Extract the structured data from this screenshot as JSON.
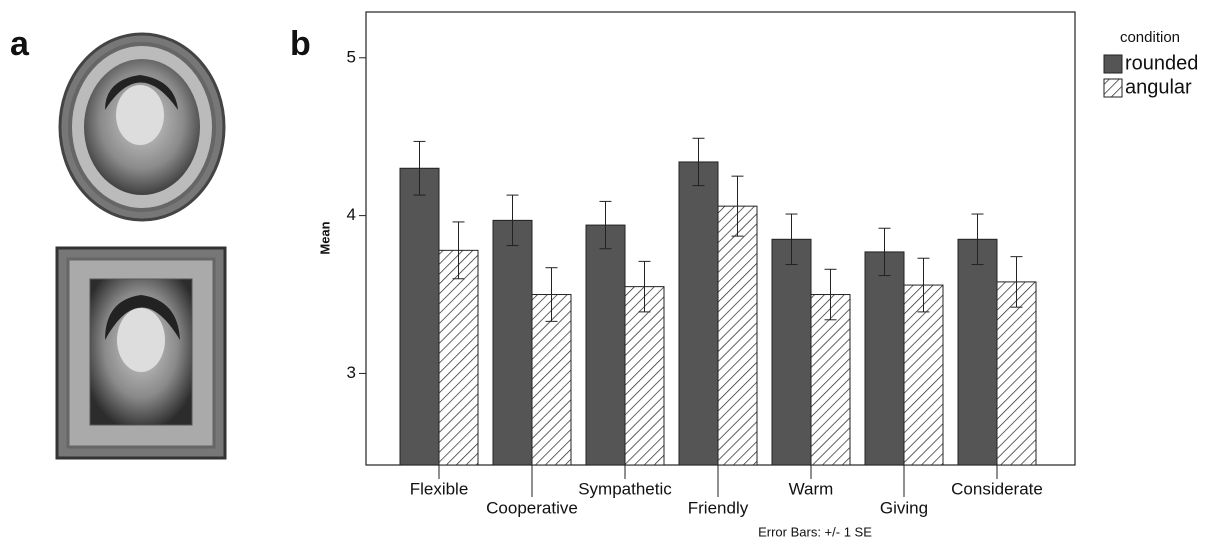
{
  "panel_labels": [
    "a",
    "b"
  ],
  "chart_data": {
    "type": "bar",
    "ylabel": "Mean",
    "categories": [
      "Flexible",
      "Cooperative",
      "Sympathetic",
      "Friendly",
      "Warm",
      "Giving",
      "Considerate"
    ],
    "series": [
      {
        "name": "rounded",
        "color": "#555555",
        "hatch": false,
        "values": [
          4.3,
          3.97,
          3.94,
          4.34,
          3.85,
          3.77,
          3.85
        ],
        "errors": [
          0.17,
          0.16,
          0.15,
          0.15,
          0.16,
          0.15,
          0.16
        ]
      },
      {
        "name": "angular",
        "color": "#ffffff",
        "hatch": true,
        "values": [
          3.78,
          3.5,
          3.55,
          4.06,
          3.5,
          3.56,
          3.58
        ],
        "errors": [
          0.18,
          0.17,
          0.16,
          0.19,
          0.16,
          0.17,
          0.16
        ]
      }
    ],
    "legend_title": "condition",
    "legend": "outside-right",
    "note": "Error Bars: +/- 1 SE",
    "ylim": [
      2.42,
      5.29
    ],
    "yticks": [
      3,
      4,
      5
    ],
    "grid": false
  }
}
